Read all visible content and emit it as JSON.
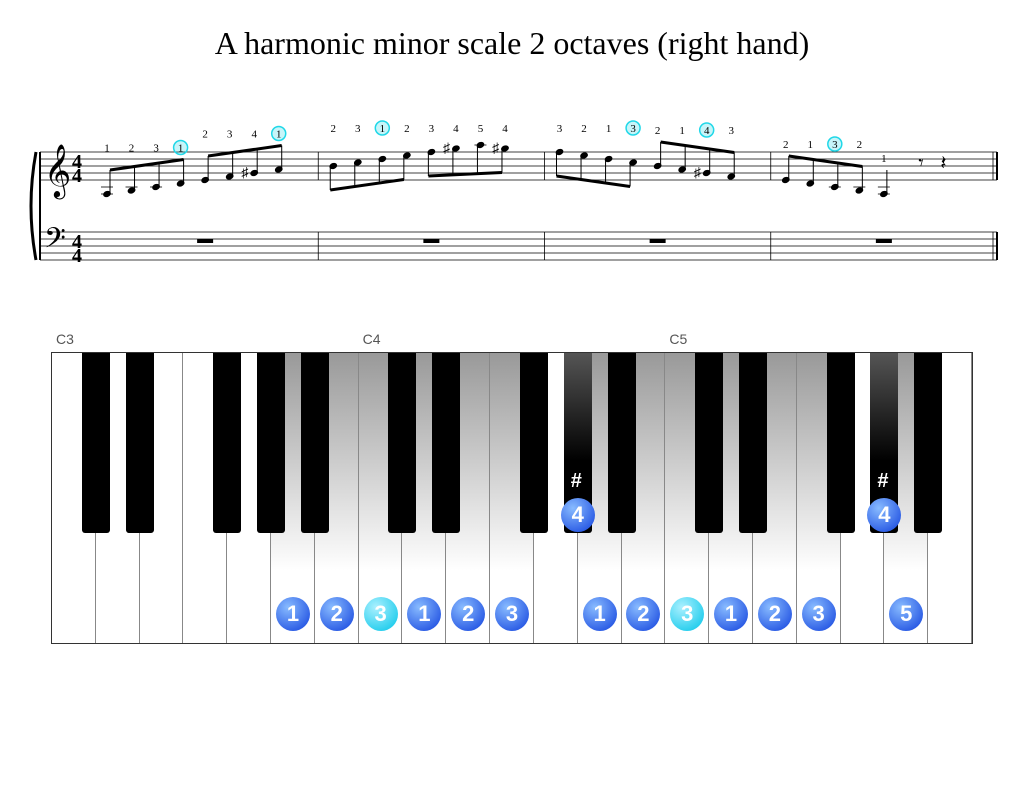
{
  "title": "A harmonic minor scale 2 octaves (right hand)",
  "staff": {
    "timeSignature": "4/4",
    "measures": 4,
    "trebleNotes": [
      {
        "measure": 0,
        "idx": 0,
        "pitch": "A3",
        "finger": "1",
        "circled": false,
        "sharp": false
      },
      {
        "measure": 0,
        "idx": 1,
        "pitch": "B3",
        "finger": "2",
        "circled": false,
        "sharp": false
      },
      {
        "measure": 0,
        "idx": 2,
        "pitch": "C4",
        "finger": "3",
        "circled": false,
        "sharp": false
      },
      {
        "measure": 0,
        "idx": 3,
        "pitch": "D4",
        "finger": "1",
        "circled": true,
        "sharp": false
      },
      {
        "measure": 0,
        "idx": 4,
        "pitch": "E4",
        "finger": "2",
        "circled": false,
        "sharp": false
      },
      {
        "measure": 0,
        "idx": 5,
        "pitch": "F4",
        "finger": "3",
        "circled": false,
        "sharp": false
      },
      {
        "measure": 0,
        "idx": 6,
        "pitch": "G#4",
        "finger": "4",
        "circled": false,
        "sharp": true
      },
      {
        "measure": 0,
        "idx": 7,
        "pitch": "A4",
        "finger": "1",
        "circled": true,
        "sharp": false
      },
      {
        "measure": 1,
        "idx": 0,
        "pitch": "B4",
        "finger": "2",
        "circled": false,
        "sharp": false
      },
      {
        "measure": 1,
        "idx": 1,
        "pitch": "C5",
        "finger": "3",
        "circled": false,
        "sharp": false
      },
      {
        "measure": 1,
        "idx": 2,
        "pitch": "D5",
        "finger": "1",
        "circled": true,
        "sharp": false
      },
      {
        "measure": 1,
        "idx": 3,
        "pitch": "E5",
        "finger": "2",
        "circled": false,
        "sharp": false
      },
      {
        "measure": 1,
        "idx": 4,
        "pitch": "F5",
        "finger": "3",
        "circled": false,
        "sharp": false
      },
      {
        "measure": 1,
        "idx": 5,
        "pitch": "G#5",
        "finger": "4",
        "circled": false,
        "sharp": true
      },
      {
        "measure": 1,
        "idx": 6,
        "pitch": "A5",
        "finger": "5",
        "circled": false,
        "sharp": false
      },
      {
        "measure": 1,
        "idx": 7,
        "pitch": "G#5",
        "finger": "4",
        "circled": false,
        "sharp": true
      },
      {
        "measure": 2,
        "idx": 0,
        "pitch": "F5",
        "finger": "3",
        "circled": false,
        "sharp": false
      },
      {
        "measure": 2,
        "idx": 1,
        "pitch": "E5",
        "finger": "2",
        "circled": false,
        "sharp": false
      },
      {
        "measure": 2,
        "idx": 2,
        "pitch": "D5",
        "finger": "1",
        "circled": false,
        "sharp": false
      },
      {
        "measure": 2,
        "idx": 3,
        "pitch": "C5",
        "finger": "3",
        "circled": true,
        "sharp": false
      },
      {
        "measure": 2,
        "idx": 4,
        "pitch": "B4",
        "finger": "2",
        "circled": false,
        "sharp": false
      },
      {
        "measure": 2,
        "idx": 5,
        "pitch": "A4",
        "finger": "1",
        "circled": false,
        "sharp": false
      },
      {
        "measure": 2,
        "idx": 6,
        "pitch": "G#4",
        "finger": "4",
        "circled": true,
        "sharp": true
      },
      {
        "measure": 2,
        "idx": 7,
        "pitch": "F4",
        "finger": "3",
        "circled": false,
        "sharp": false
      },
      {
        "measure": 3,
        "idx": 0,
        "pitch": "E4",
        "finger": "2",
        "circled": false,
        "sharp": false
      },
      {
        "measure": 3,
        "idx": 1,
        "pitch": "D4",
        "finger": "1",
        "circled": false,
        "sharp": false
      },
      {
        "measure": 3,
        "idx": 2,
        "pitch": "C4",
        "finger": "3",
        "circled": true,
        "sharp": false
      },
      {
        "measure": 3,
        "idx": 3,
        "pitch": "B3",
        "finger": "2",
        "circled": false,
        "sharp": false
      },
      {
        "measure": 3,
        "idx": 4,
        "pitch": "A3",
        "finger": "1",
        "circled": false,
        "sharp": false
      }
    ],
    "circledFingerColor": "#20d8e8",
    "fingerTextColor": "#000000"
  },
  "piano": {
    "totalWhiteKeys": 21,
    "whiteKeyWidth": 43.8,
    "blackKeyWidth": 28,
    "octaveLabels": [
      {
        "text": "C3",
        "whiteIndex": 0
      },
      {
        "text": "C4",
        "whiteIndex": 7
      },
      {
        "text": "C5",
        "whiteIndex": 14
      }
    ],
    "blackKeyPositions": [
      0,
      1,
      3,
      4,
      5,
      7,
      8,
      10,
      11,
      12,
      14,
      15,
      17,
      18,
      19
    ],
    "shadedWhiteKeys": [
      5,
      6,
      7,
      8,
      9,
      10,
      12,
      13,
      14,
      15,
      16,
      17,
      19
    ],
    "shadedBlackKeys": [
      11,
      18
    ],
    "fingerMarkers": [
      {
        "whiteIndex": 5,
        "finger": "1",
        "cyan": false,
        "onBlack": false
      },
      {
        "whiteIndex": 6,
        "finger": "2",
        "cyan": false,
        "onBlack": false
      },
      {
        "whiteIndex": 7,
        "finger": "3",
        "cyan": true,
        "onBlack": false
      },
      {
        "whiteIndex": 8,
        "finger": "1",
        "cyan": false,
        "onBlack": false
      },
      {
        "whiteIndex": 9,
        "finger": "2",
        "cyan": false,
        "onBlack": false
      },
      {
        "whiteIndex": 10,
        "finger": "3",
        "cyan": false,
        "onBlack": false
      },
      {
        "blackAfter": 11,
        "finger": "4",
        "cyan": false,
        "onBlack": true,
        "sharpLabel": "#"
      },
      {
        "whiteIndex": 12,
        "finger": "1",
        "cyan": false,
        "onBlack": false
      },
      {
        "whiteIndex": 13,
        "finger": "2",
        "cyan": false,
        "onBlack": false
      },
      {
        "whiteIndex": 14,
        "finger": "3",
        "cyan": true,
        "onBlack": false
      },
      {
        "whiteIndex": 15,
        "finger": "1",
        "cyan": false,
        "onBlack": false
      },
      {
        "whiteIndex": 16,
        "finger": "2",
        "cyan": false,
        "onBlack": false
      },
      {
        "whiteIndex": 17,
        "finger": "3",
        "cyan": false,
        "onBlack": false
      },
      {
        "blackAfter": 18,
        "finger": "4",
        "cyan": false,
        "onBlack": true,
        "sharpLabel": "#"
      },
      {
        "whiteIndex": 19,
        "finger": "5",
        "cyan": false,
        "onBlack": false
      }
    ],
    "whiteFingerBottom": 12,
    "blackFingerTop": 145,
    "colors": {
      "blueGradient1": "#88bbff",
      "blueGradient2": "#1040dd",
      "cyanGradient1": "#aaf0ff",
      "cyanGradient2": "#00c4e8",
      "whiteKeyShade1": "#999999",
      "whiteKeyShade2": "#ffffff"
    }
  }
}
